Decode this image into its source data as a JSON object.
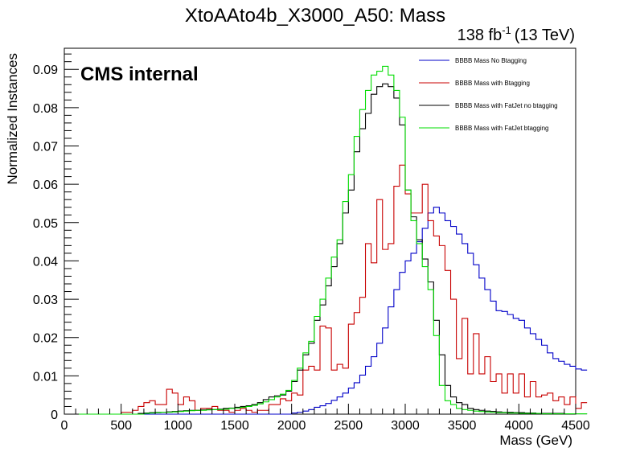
{
  "chart_data": {
    "type": "line",
    "title": "XtoAAto4b_X3000_A50: Mass",
    "lumi_label": "138 fb",
    "lumi_exponent": "-1",
    "energy_label": "(13 TeV)",
    "experiment_label": "CMS internal",
    "xlabel": "Mass (GeV)",
    "ylabel": "Normalized Instances",
    "xlim": [
      0,
      4500
    ],
    "ylim": [
      0,
      0.0955
    ],
    "x_ticks": [
      0,
      500,
      1000,
      1500,
      2000,
      2500,
      3000,
      3500,
      4000,
      4500
    ],
    "x_tick_labels": [
      "0",
      "500",
      "1000",
      "1500",
      "2000",
      "2500",
      "3000",
      "3500",
      "4000",
      "4500"
    ],
    "y_ticks": [
      0,
      0.01,
      0.02,
      0.03,
      0.04,
      0.05,
      0.06,
      0.07,
      0.08,
      0.09
    ],
    "y_tick_labels": [
      "0",
      "0.01",
      "0.02",
      "0.03",
      "0.04",
      "0.05",
      "0.06",
      "0.07",
      "0.08",
      "0.09"
    ],
    "grid": false,
    "legend_position": "top-right",
    "bin_edges_start": 0,
    "bin_width": 50,
    "series": [
      {
        "name": "BBBB Mass No Btagging",
        "color": "#0000c8",
        "values": [
          0,
          0,
          0,
          0,
          0,
          0,
          0,
          0,
          0,
          0,
          0,
          0,
          0,
          0,
          0,
          0,
          0,
          0,
          0,
          0,
          0,
          0,
          0,
          0,
          0,
          0,
          0,
          0,
          0,
          0,
          0,
          0,
          0,
          0,
          0,
          0,
          0,
          0,
          0,
          0,
          0.0003,
          0.0005,
          0.0008,
          0.0012,
          0.0018,
          0.0022,
          0.0028,
          0.0036,
          0.0045,
          0.0055,
          0.0068,
          0.0082,
          0.0102,
          0.0125,
          0.015,
          0.0185,
          0.0225,
          0.028,
          0.0325,
          0.037,
          0.04,
          0.042,
          0.045,
          0.0485,
          0.0525,
          0.054,
          0.0525,
          0.0505,
          0.049,
          0.047,
          0.0445,
          0.042,
          0.039,
          0.0355,
          0.0325,
          0.0295,
          0.027,
          0.0268,
          0.026,
          0.025,
          0.0245,
          0.0225,
          0.021,
          0.0195,
          0.018,
          0.016,
          0.0145,
          0.0138,
          0.013,
          0.0125,
          0.0118,
          0.0115
        ]
      },
      {
        "name": "BBBB Mass with Btagging",
        "color": "#c80000",
        "values": [
          0,
          0,
          0,
          0,
          0,
          0,
          0,
          0,
          0,
          0,
          0.0005,
          0.0005,
          0.001,
          0.002,
          0.003,
          0.0035,
          0.0025,
          0.0025,
          0.0065,
          0.0055,
          0.0025,
          0.0045,
          0.0035,
          0.001,
          0.0015,
          0.0015,
          0.002,
          0.001,
          0.001,
          0.0005,
          0.001,
          0.0015,
          0.001,
          0.0005,
          0.001,
          0.001,
          0.0025,
          0.0025,
          0.004,
          0.0035,
          0.0055,
          0.005,
          0.0115,
          0.0125,
          0.0115,
          0.023,
          0.0225,
          0.0115,
          0.013,
          0.012,
          0.0235,
          0.0265,
          0.0305,
          0.0445,
          0.0395,
          0.056,
          0.043,
          0.0445,
          0.0595,
          0.065,
          0.0575,
          0.0525,
          0.0525,
          0.06,
          0.0505,
          0.0465,
          0.044,
          0.0375,
          0.03,
          0.0145,
          0.025,
          0.0105,
          0.021,
          0.0105,
          0.015,
          0.0085,
          0.0105,
          0.0055,
          0.0105,
          0.0055,
          0.0105,
          0.0045,
          0.0085,
          0.0045,
          0.005,
          0.0055,
          0.0035,
          0.0045,
          0.0025,
          0.0045,
          0.0015,
          0.003
        ]
      },
      {
        "name": "BBBB Mass with FatJet no btagging",
        "color": "#000000",
        "values": [
          0,
          0,
          0,
          0,
          0,
          0,
          0,
          0,
          0,
          0,
          0,
          0,
          0,
          0.0002,
          0.0003,
          0.0004,
          0.0005,
          0.0005,
          0.0006,
          0.0007,
          0.0008,
          0.0009,
          0.001,
          0.001,
          0.0011,
          0.0012,
          0.0012,
          0.0013,
          0.0015,
          0.0016,
          0.0018,
          0.002,
          0.0022,
          0.0025,
          0.003,
          0.0038,
          0.0045,
          0.0048,
          0.005,
          0.006,
          0.0085,
          0.0115,
          0.0155,
          0.0185,
          0.0245,
          0.0285,
          0.0335,
          0.0385,
          0.0445,
          0.0525,
          0.0585,
          0.0685,
          0.0745,
          0.0785,
          0.0835,
          0.0855,
          0.0862,
          0.0855,
          0.0825,
          0.0755,
          0.0585,
          0.0515,
          0.0455,
          0.0405,
          0.0345,
          0.0245,
          0.0155,
          0.0075,
          0.0045,
          0.003,
          0.0025,
          0.0015,
          0.0012,
          0.001,
          0.0008,
          0.0007,
          0.0006,
          0.0005,
          0.0005,
          0.0004,
          0.0004,
          0.0003,
          0.0003,
          0.0002,
          0.0002,
          0.0002,
          0.0002,
          0.0002,
          0.0001,
          0.0001,
          0.0001,
          0.0001
        ]
      },
      {
        "name": "BBBB Mass with FatJet btagging",
        "color": "#00dc00",
        "values": [
          0,
          0,
          0,
          0,
          0,
          0,
          0,
          0,
          0,
          0,
          0,
          0,
          0,
          0,
          0.0002,
          0.0003,
          0.0004,
          0.0005,
          0.0005,
          0.0006,
          0.0007,
          0.0008,
          0.0009,
          0.001,
          0.001,
          0.0011,
          0.0012,
          0.0012,
          0.0013,
          0.0015,
          0.0016,
          0.0018,
          0.002,
          0.0023,
          0.0027,
          0.0032,
          0.0038,
          0.0045,
          0.0052,
          0.0062,
          0.0088,
          0.012,
          0.016,
          0.019,
          0.0255,
          0.03,
          0.0355,
          0.041,
          0.0455,
          0.0555,
          0.0625,
          0.0725,
          0.0795,
          0.0845,
          0.0885,
          0.0895,
          0.0908,
          0.0885,
          0.0845,
          0.0775,
          0.0585,
          0.0505,
          0.0445,
          0.0385,
          0.0325,
          0.0205,
          0.0075,
          0.0035,
          0.0025,
          0.0015,
          0.0012,
          0.001,
          0.0008,
          0.0007,
          0.0006,
          0.0005,
          0.0004,
          0.0004,
          0.0003,
          0.0003,
          0.0002,
          0.0002,
          0.0002,
          0.0002,
          0.0001,
          0.0001,
          0.0001,
          0.0001,
          0.0001,
          0.0001,
          0.0001,
          0.0001
        ]
      }
    ]
  }
}
